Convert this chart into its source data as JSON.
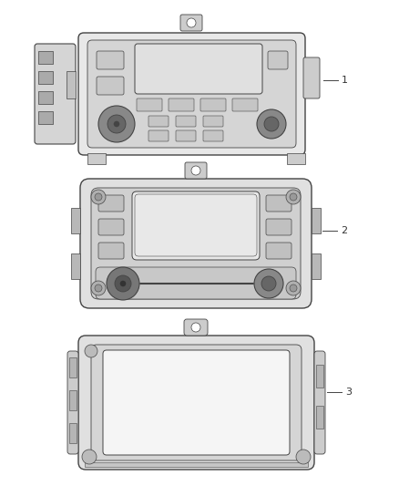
{
  "background_color": "#ffffff",
  "line_color": "#444444",
  "label_color": "#333333",
  "labels": [
    "1",
    "2",
    "3"
  ],
  "fig_width": 4.38,
  "fig_height": 5.33
}
